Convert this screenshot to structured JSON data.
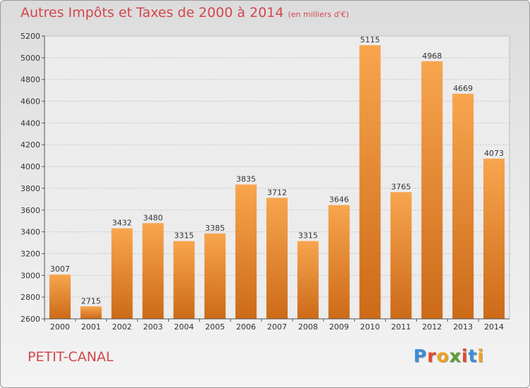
{
  "title": "Autres Impôts et Taxes de 2000 à 2014",
  "unit_note": "(en milliers d'€)",
  "commune": "PETIT-CANAL",
  "logo": {
    "letters": [
      "P",
      "r",
      "o",
      "x",
      "i",
      "t",
      "i"
    ],
    "colors": [
      "#3b8fd6",
      "#e4492f",
      "#f3a21f",
      "#5a9e2f",
      "#e4492f",
      "#3b8fd6",
      "#f3a21f"
    ]
  },
  "colors": {
    "bar_light": "#f8a54e",
    "bar_dark": "#cc6a18",
    "title": "#d4464c"
  },
  "chart_data": {
    "type": "bar",
    "categories": [
      "2000",
      "2001",
      "2002",
      "2003",
      "2004",
      "2005",
      "2006",
      "2007",
      "2008",
      "2009",
      "2010",
      "2011",
      "2012",
      "2013",
      "2014"
    ],
    "values": [
      3007,
      2715,
      3432,
      3480,
      3315,
      3385,
      3835,
      3712,
      3315,
      3646,
      5115,
      3765,
      4968,
      4669,
      4073
    ],
    "ylim": [
      2600,
      5200
    ],
    "yticks": [
      2600,
      2800,
      3000,
      3200,
      3400,
      3600,
      3800,
      4000,
      4200,
      4400,
      4600,
      4800,
      5000,
      5200
    ],
    "grid": true
  }
}
